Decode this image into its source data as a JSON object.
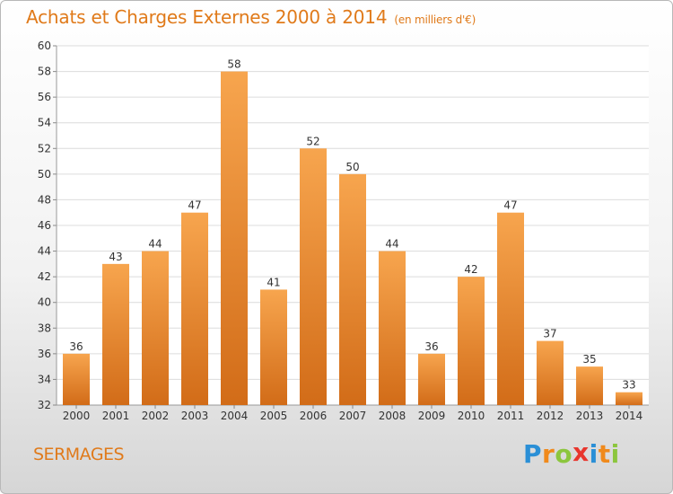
{
  "header": {
    "title": "Achats et Charges Externes 2000 à 2014",
    "subtitle": "(en milliers d'€)"
  },
  "footer": {
    "commune": "SERMAGES",
    "logo_letters": [
      {
        "char": "P",
        "color": "#2a8fd6"
      },
      {
        "char": "r",
        "color": "#f08a1c"
      },
      {
        "char": "o",
        "color": "#8cc63e"
      },
      {
        "char": "x",
        "color": "#e8362d"
      },
      {
        "char": "i",
        "color": "#2a8fd6"
      },
      {
        "char": "t",
        "color": "#f08a1c"
      },
      {
        "char": "i",
        "color": "#8cc63e"
      }
    ]
  },
  "colors": {
    "bar_top": "#f7a54e",
    "bar_bottom": "#d26c18",
    "grid": "#dcdcdc",
    "text": "#333333"
  },
  "chart_data": {
    "type": "bar",
    "categories": [
      "2000",
      "2001",
      "2002",
      "2003",
      "2004",
      "2005",
      "2006",
      "2007",
      "2008",
      "2009",
      "2010",
      "2011",
      "2012",
      "2013",
      "2014"
    ],
    "values": [
      36,
      43,
      44,
      47,
      58,
      41,
      52,
      50,
      44,
      36,
      42,
      47,
      37,
      35,
      33
    ],
    "data_labels": [
      "36",
      "43",
      "44",
      "47",
      "58",
      "41",
      "52",
      "50",
      "44",
      "36",
      "42",
      "47",
      "37",
      "35",
      "33"
    ],
    "title": "Achats et Charges Externes 2000 à 2014",
    "subtitle": "(en milliers d'€)",
    "ylim": [
      32,
      60
    ],
    "yticks": [
      32,
      34,
      36,
      38,
      40,
      42,
      44,
      46,
      48,
      50,
      52,
      54,
      56,
      58,
      60
    ],
    "grid": true,
    "legend": "none"
  }
}
